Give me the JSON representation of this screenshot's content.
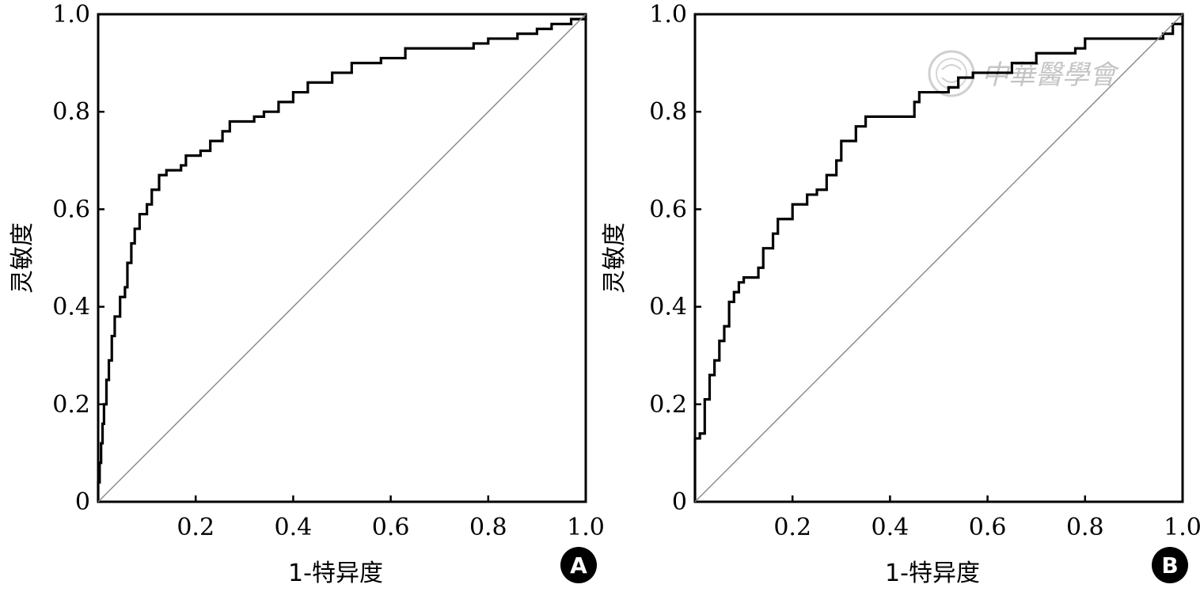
{
  "watermark": {
    "text": "中華醫學會"
  },
  "chart_data": [
    {
      "type": "line",
      "panel_label": "A",
      "xlabel": "1-特异度",
      "ylabel": "灵敏度",
      "xlim": [
        0,
        1
      ],
      "ylim": [
        0,
        1
      ],
      "x_ticks": [
        0.2,
        0.4,
        0.6,
        0.8,
        1.0
      ],
      "x_tick_labels": [
        "0.2",
        "0.4",
        "0.6",
        "0.8",
        "1.0"
      ],
      "y_ticks": [
        0,
        0.2,
        0.4,
        0.6,
        0.8,
        1.0
      ],
      "y_tick_labels": [
        "0",
        "0.2",
        "0.4",
        "0.6",
        "0.8",
        "1.0"
      ],
      "grid": false,
      "series": [
        {
          "role": "roc",
          "points": [
            [
              0,
              0
            ],
            [
              0,
              0.04
            ],
            [
              0.003,
              0.08
            ],
            [
              0.006,
              0.12
            ],
            [
              0.009,
              0.16
            ],
            [
              0.012,
              0.2
            ],
            [
              0.017,
              0.25
            ],
            [
              0.022,
              0.29
            ],
            [
              0.028,
              0.34
            ],
            [
              0.034,
              0.38
            ],
            [
              0.045,
              0.42
            ],
            [
              0.055,
              0.44
            ],
            [
              0.06,
              0.49
            ],
            [
              0.068,
              0.53
            ],
            [
              0.075,
              0.56
            ],
            [
              0.085,
              0.59
            ],
            [
              0.1,
              0.61
            ],
            [
              0.11,
              0.64
            ],
            [
              0.125,
              0.67
            ],
            [
              0.14,
              0.68
            ],
            [
              0.17,
              0.69
            ],
            [
              0.18,
              0.71
            ],
            [
              0.21,
              0.72
            ],
            [
              0.23,
              0.74
            ],
            [
              0.255,
              0.76
            ],
            [
              0.27,
              0.78
            ],
            [
              0.3,
              0.78
            ],
            [
              0.32,
              0.79
            ],
            [
              0.34,
              0.8
            ],
            [
              0.37,
              0.82
            ],
            [
              0.4,
              0.84
            ],
            [
              0.43,
              0.86
            ],
            [
              0.48,
              0.88
            ],
            [
              0.52,
              0.9
            ],
            [
              0.58,
              0.91
            ],
            [
              0.63,
              0.93
            ],
            [
              0.7,
              0.93
            ],
            [
              0.77,
              0.94
            ],
            [
              0.8,
              0.95
            ],
            [
              0.86,
              0.96
            ],
            [
              0.9,
              0.97
            ],
            [
              0.93,
              0.98
            ],
            [
              0.97,
              0.99
            ],
            [
              1.0,
              1.0
            ]
          ]
        },
        {
          "role": "reference",
          "points": [
            [
              0,
              0
            ],
            [
              1,
              1
            ]
          ]
        }
      ]
    },
    {
      "type": "line",
      "panel_label": "B",
      "xlabel": "1-特异度",
      "ylabel": "灵敏度",
      "xlim": [
        0,
        1
      ],
      "ylim": [
        0,
        1
      ],
      "x_ticks": [
        0.2,
        0.4,
        0.6,
        0.8,
        1.0
      ],
      "x_tick_labels": [
        "0.2",
        "0.4",
        "0.6",
        "0.8",
        "1.0"
      ],
      "y_ticks": [
        0,
        0.2,
        0.4,
        0.6,
        0.8,
        1.0
      ],
      "y_tick_labels": [
        "0",
        "0.2",
        "0.4",
        "0.6",
        "0.8",
        "1.0"
      ],
      "grid": false,
      "series": [
        {
          "role": "roc",
          "points": [
            [
              0,
              0
            ],
            [
              0,
              0.13
            ],
            [
              0.01,
              0.14
            ],
            [
              0.02,
              0.21
            ],
            [
              0.03,
              0.26
            ],
            [
              0.04,
              0.29
            ],
            [
              0.05,
              0.33
            ],
            [
              0.06,
              0.36
            ],
            [
              0.07,
              0.41
            ],
            [
              0.08,
              0.43
            ],
            [
              0.09,
              0.45
            ],
            [
              0.1,
              0.46
            ],
            [
              0.13,
              0.48
            ],
            [
              0.14,
              0.52
            ],
            [
              0.16,
              0.55
            ],
            [
              0.17,
              0.58
            ],
            [
              0.2,
              0.61
            ],
            [
              0.23,
              0.63
            ],
            [
              0.25,
              0.64
            ],
            [
              0.27,
              0.67
            ],
            [
              0.29,
              0.7
            ],
            [
              0.3,
              0.74
            ],
            [
              0.33,
              0.77
            ],
            [
              0.35,
              0.79
            ],
            [
              0.44,
              0.79
            ],
            [
              0.45,
              0.82
            ],
            [
              0.46,
              0.84
            ],
            [
              0.52,
              0.85
            ],
            [
              0.54,
              0.87
            ],
            [
              0.57,
              0.88
            ],
            [
              0.62,
              0.88
            ],
            [
              0.65,
              0.9
            ],
            [
              0.7,
              0.92
            ],
            [
              0.78,
              0.93
            ],
            [
              0.8,
              0.95
            ],
            [
              0.96,
              0.96
            ],
            [
              0.98,
              0.98
            ],
            [
              1.0,
              1.0
            ]
          ]
        },
        {
          "role": "reference",
          "points": [
            [
              0,
              0
            ],
            [
              1,
              1
            ]
          ]
        }
      ]
    }
  ]
}
